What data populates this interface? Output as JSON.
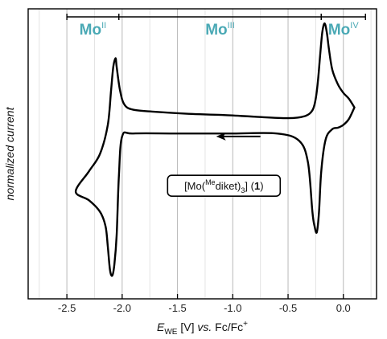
{
  "chart_data": {
    "type": "line",
    "xlabel": {
      "italic": "E",
      "sub": "WE",
      "unit": " [V] ",
      "vs": "vs.",
      "ref": " Fc/Fc",
      "ref_sup": "+"
    },
    "ylabel": "normalized current",
    "xlim": [
      -2.85,
      0.3
    ],
    "ylim": [
      0,
      1
    ],
    "x_ticks": [
      -2.5,
      -2.0,
      -1.5,
      -1.0,
      -0.5,
      0.0
    ],
    "x_tick_labels": [
      "-2.5",
      "-2.0",
      "-1.5",
      "-1.0",
      "-0.5",
      "0.0"
    ],
    "grid": "vertical",
    "regions": [
      {
        "label": "Mo",
        "sup": "II",
        "from": -2.5,
        "to": -2.03
      },
      {
        "label": "Mo",
        "sup": "III",
        "from": -2.03,
        "to": -0.2
      },
      {
        "label": "Mo",
        "sup": "IV",
        "from": -0.2,
        "to": 0.2
      }
    ],
    "region_color": "#4aa9b5",
    "compound_label": {
      "open": "[Mo(",
      "sup": "Me",
      "mid": "diket)",
      "sub": "3",
      "close": "] (",
      "bold": "1",
      "end": ")"
    },
    "scan_direction_arrow": {
      "from": -0.75,
      "to": -1.15,
      "y": 0.56
    },
    "series": [
      {
        "x": [
          0.1,
          0.05,
          0.0,
          -0.05,
          -0.1,
          -0.13,
          -0.15,
          -0.17,
          -0.19,
          -0.21,
          -0.23,
          -0.25,
          -0.28,
          -0.35,
          -0.5,
          -0.8,
          -1.1,
          -1.4,
          -1.7,
          -1.9,
          -1.98,
          -2.02,
          -2.05,
          -2.06,
          -2.08,
          -2.1,
          -2.13,
          -2.2,
          -2.3,
          -2.42,
          -2.3,
          -2.2,
          -2.15,
          -2.13,
          -2.11,
          -2.09,
          -2.07,
          -2.05,
          -2.03,
          -2.0,
          -1.9,
          -1.5,
          -1.0,
          -0.6,
          -0.4,
          -0.32,
          -0.28,
          -0.26,
          -0.24,
          -0.22,
          -0.2,
          -0.16,
          -0.1,
          -0.05,
          0.0,
          0.05,
          0.1
        ],
        "y": [
          0.66,
          0.69,
          0.71,
          0.74,
          0.79,
          0.86,
          0.92,
          0.95,
          0.92,
          0.84,
          0.75,
          0.69,
          0.65,
          0.63,
          0.623,
          0.628,
          0.634,
          0.638,
          0.645,
          0.652,
          0.67,
          0.72,
          0.8,
          0.83,
          0.8,
          0.72,
          0.6,
          0.5,
          0.44,
          0.37,
          0.34,
          0.3,
          0.25,
          0.18,
          0.1,
          0.08,
          0.12,
          0.22,
          0.42,
          0.56,
          0.57,
          0.57,
          0.57,
          0.57,
          0.545,
          0.47,
          0.3,
          0.25,
          0.23,
          0.3,
          0.44,
          0.55,
          0.585,
          0.59,
          0.6,
          0.62,
          0.66
        ]
      }
    ]
  }
}
